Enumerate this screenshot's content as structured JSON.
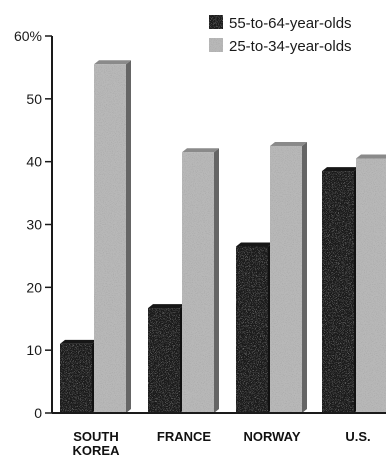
{
  "chart_data": {
    "type": "bar",
    "categories": [
      "SOUTH KOREA",
      "FRANCE",
      "NORWAY",
      "U.S."
    ],
    "series": [
      {
        "name": "55-to-64-year-olds",
        "values": [
          11,
          16.7,
          26.5,
          38.5
        ],
        "color": "#1c1c1c"
      },
      {
        "name": "25-to-34-year-olds",
        "values": [
          55.5,
          41.5,
          42.5,
          40.5
        ],
        "color": "#b8b8b8"
      }
    ],
    "ylim": [
      0,
      60
    ],
    "yticks": [
      {
        "value": 0,
        "label": "0"
      },
      {
        "value": 10,
        "label": "10"
      },
      {
        "value": 20,
        "label": "20"
      },
      {
        "value": 30,
        "label": "30"
      },
      {
        "value": 40,
        "label": "40"
      },
      {
        "value": 50,
        "label": "50"
      },
      {
        "value": 60,
        "label": "60%"
      }
    ],
    "legend_position": "top-right",
    "grid": false
  }
}
